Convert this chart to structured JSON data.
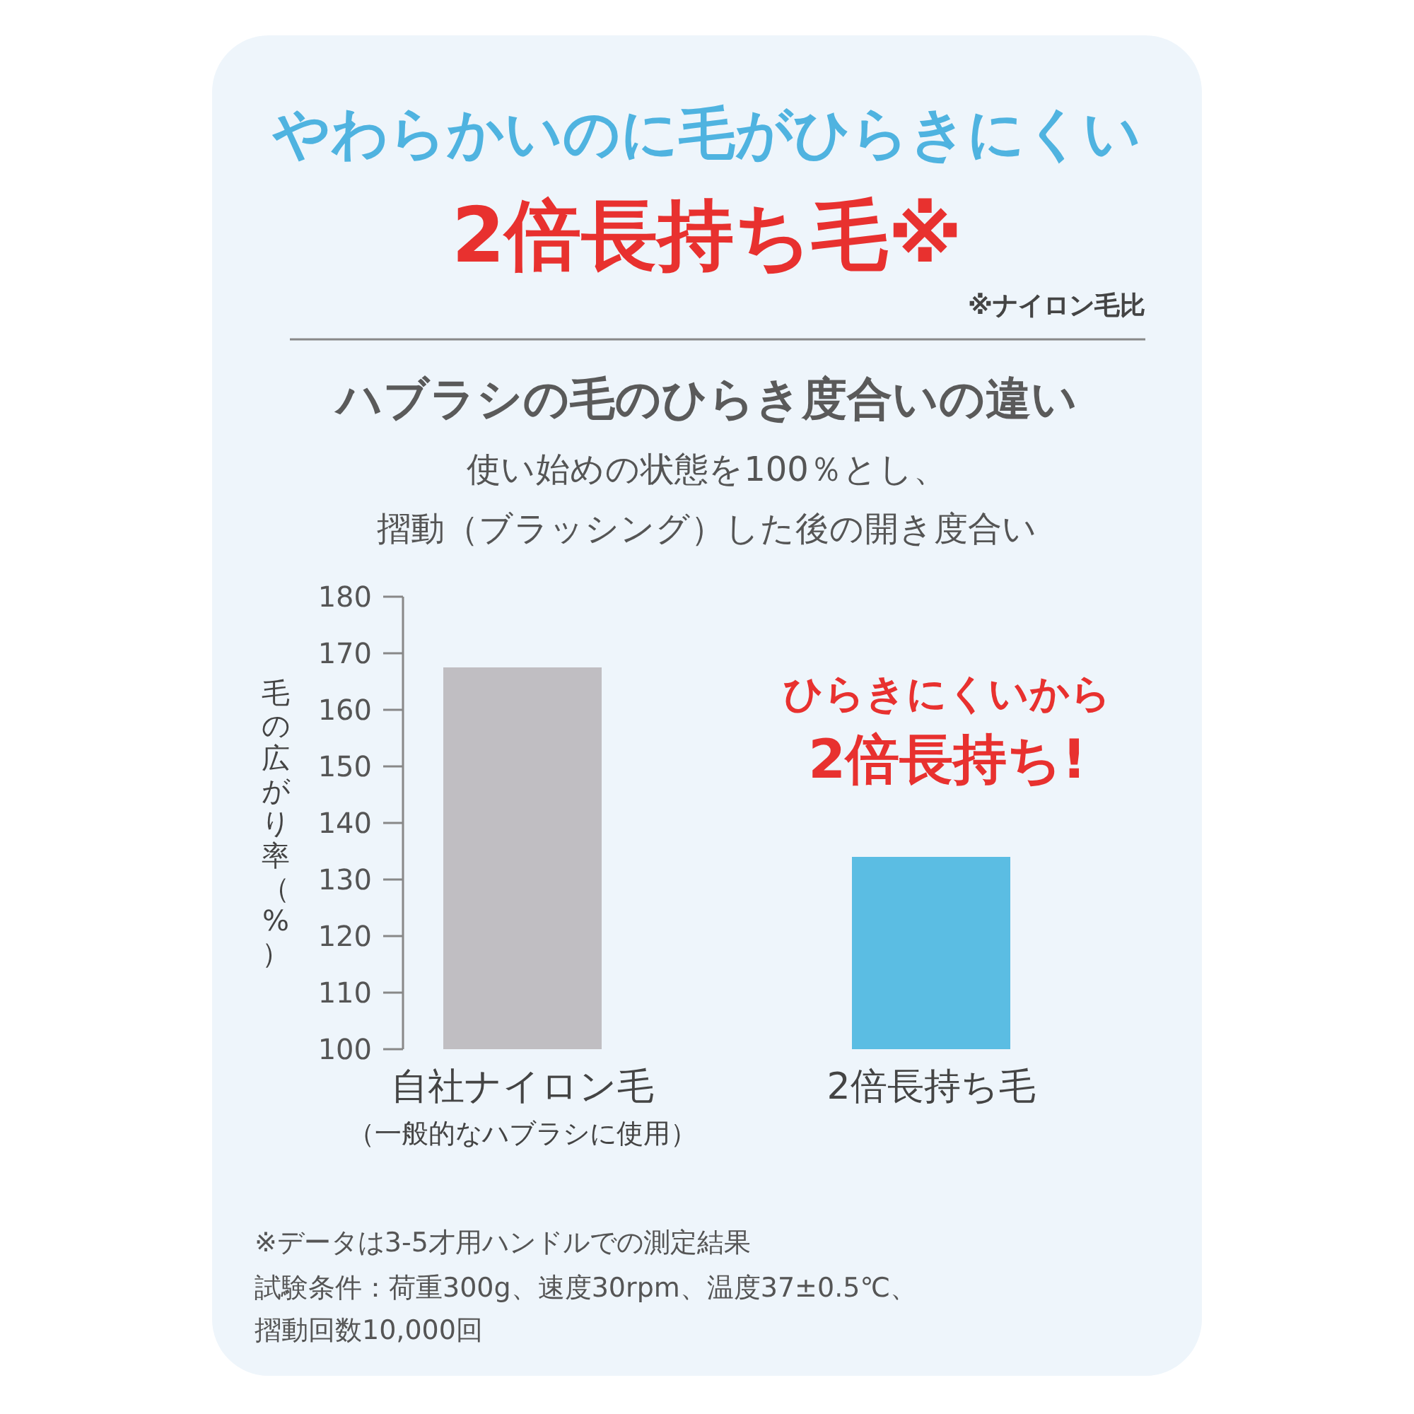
{
  "chart_data": {
    "type": "bar",
    "title": "ハブラシの毛のひらき度合いの違い",
    "subtitle": "使い始めの状態を100％とし、摺動（ブラッシング）した後の開き度合い",
    "ylabel": "毛の広がり率（%）",
    "categories": [
      "自社ナイロン毛（一般的なハブラシに使用）",
      "2倍長持ち毛"
    ],
    "values": [
      167.5,
      134
    ],
    "colors": [
      "#c0bec2",
      "#5bbde3"
    ],
    "ylim": [
      100,
      180
    ],
    "yticks": [
      100,
      110,
      120,
      130,
      140,
      150,
      160,
      170,
      180
    ],
    "annotations": [
      "やわらかいのに毛がひらきにくい",
      "2倍長持ち毛※",
      "※ナイロン毛比",
      "ひらきにくいから",
      "2倍長持ち!",
      "※データは3-5才用ハンドルでの測定結果",
      "試験条件：荷重300g、速度30rpm、温度37±0.5℃、摺動回数10,000回"
    ]
  }
}
